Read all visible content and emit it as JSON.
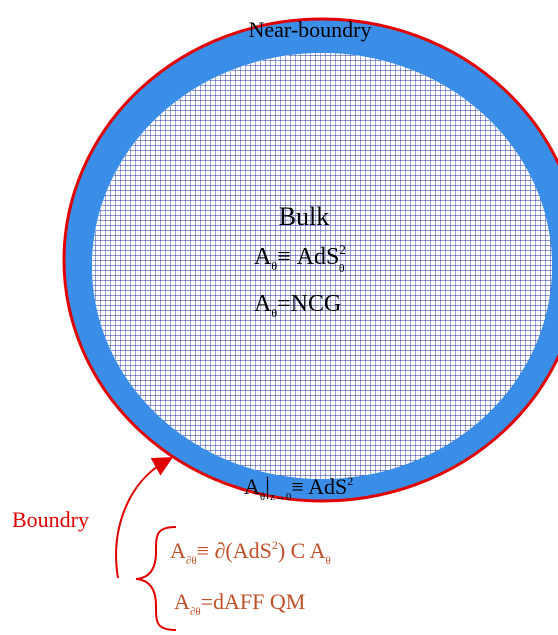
{
  "labels": {
    "near_boundary": "Near-boundry",
    "bulk": "Bulk",
    "boundary": "Boundry"
  },
  "bulk_equations": {
    "eq1": {
      "base": "A",
      "sub": "θ",
      "rel": "≡ AdS",
      "sup": "2",
      "sub2": "θ"
    },
    "eq2": {
      "base": "A",
      "sub": "θ",
      "rest": "=NCG"
    }
  },
  "ring_equation": {
    "base": "A",
    "sub": "θ",
    "bar": "|",
    "sub_limit": "z→0",
    "rel": "≡ AdS",
    "sup": "2"
  },
  "boundary_equations": {
    "eq1": {
      "base": "A",
      "sub": "∂θ",
      "rel": "≡ ∂(AdS",
      "sup": "2",
      "close": ")  C A",
      "sub2": "θ"
    },
    "eq2": {
      "base": "A",
      "sub": "∂θ",
      "rest": "=dAFF QM"
    }
  },
  "colors": {
    "outer_ring": "#e00000",
    "ring_fill": "#3a8ee8",
    "grid_line": "#1c2fa0",
    "grid_bg": "#ffffff",
    "text_dark": "#000000",
    "text_red": "#e00000",
    "text_boundary_eq": "#c0502a"
  }
}
